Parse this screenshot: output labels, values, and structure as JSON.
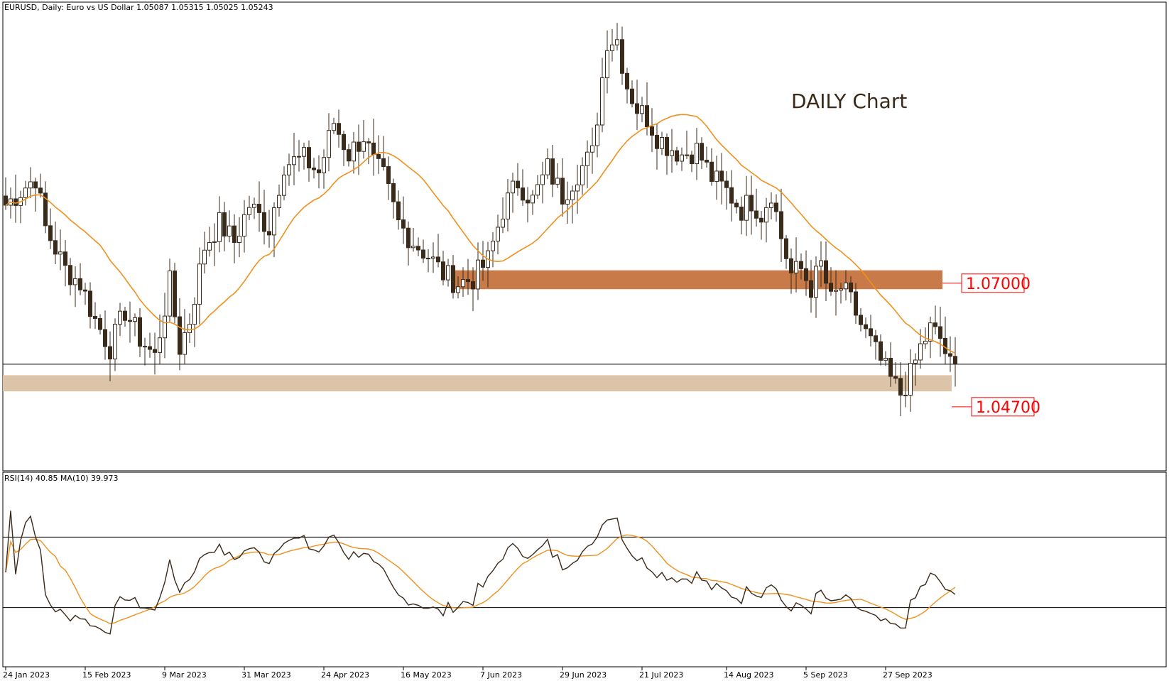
{
  "header": {
    "symbol_line": "EURUSD, Daily:  Euro vs US Dollar  1.05087 1.05315 1.05025 1.05243"
  },
  "annotation": {
    "text": "DAILY Chart",
    "color": "#3a2a1a"
  },
  "levels": [
    {
      "label": "1.07000",
      "value": 1.07,
      "zone": [
        1.0687,
        1.0728
      ],
      "color": "#c87a48"
    },
    {
      "label": "1.04700",
      "value": 1.047,
      "zone": [
        1.0465,
        1.05
      ],
      "color": "#dcc4a8"
    }
  ],
  "current_price_line": 1.0524,
  "x_axis": {
    "ticks": [
      {
        "label": "24 Jan 2023",
        "index": 0
      },
      {
        "label": "15 Feb 2023",
        "index": 16
      },
      {
        "label": "9 Mar 2023",
        "index": 32
      },
      {
        "label": "31 Mar 2023",
        "index": 48
      },
      {
        "label": "24 Apr 2023",
        "index": 64
      },
      {
        "label": "16 May 2023",
        "index": 80
      },
      {
        "label": "7 Jun 2023",
        "index": 96
      },
      {
        "label": "29 Jun 2023",
        "index": 112
      },
      {
        "label": "21 Jul 2023",
        "index": 128
      },
      {
        "label": "14 Aug 2023",
        "index": 145
      },
      {
        "label": "5 Sep 2023",
        "index": 161
      },
      {
        "label": "27 Sep 2023",
        "index": 177
      }
    ]
  },
  "chart_data": {
    "type": "candlestick",
    "ylim": [
      1.03,
      1.13
    ],
    "ma_color": "#f0901e",
    "bull_color": "#ffffff",
    "bear_color": "#3a2a1a",
    "keypoints": [
      [
        0,
        1.087
      ],
      [
        6,
        1.093
      ],
      [
        8,
        1.082
      ],
      [
        12,
        1.073
      ],
      [
        15,
        1.07
      ],
      [
        18,
        1.062
      ],
      [
        21,
        1.056
      ],
      [
        24,
        1.064
      ],
      [
        27,
        1.058
      ],
      [
        30,
        1.054
      ],
      [
        33,
        1.07
      ],
      [
        35,
        1.056
      ],
      [
        37,
        1.062
      ],
      [
        40,
        1.078
      ],
      [
        43,
        1.083
      ],
      [
        46,
        1.079
      ],
      [
        49,
        1.087
      ],
      [
        53,
        1.082
      ],
      [
        56,
        1.096
      ],
      [
        60,
        1.097
      ],
      [
        63,
        1.094
      ],
      [
        66,
        1.105
      ],
      [
        69,
        1.098
      ],
      [
        72,
        1.102
      ],
      [
        74,
        1.096
      ],
      [
        76,
        1.093
      ],
      [
        79,
        1.083
      ],
      [
        82,
        1.079
      ],
      [
        85,
        1.076
      ],
      [
        88,
        1.072
      ],
      [
        91,
        1.07
      ],
      [
        94,
        1.071
      ],
      [
        97,
        1.075
      ],
      [
        100,
        1.086
      ],
      [
        103,
        1.092
      ],
      [
        106,
        1.088
      ],
      [
        109,
        1.095
      ],
      [
        112,
        1.089
      ],
      [
        115,
        1.094
      ],
      [
        118,
        1.098
      ],
      [
        121,
        1.123
      ],
      [
        123,
        1.123
      ],
      [
        125,
        1.113
      ],
      [
        127,
        1.108
      ],
      [
        129,
        1.106
      ],
      [
        131,
        1.102
      ],
      [
        133,
        1.1
      ],
      [
        136,
        1.098
      ],
      [
        139,
        1.099
      ],
      [
        142,
        1.093
      ],
      [
        145,
        1.09
      ],
      [
        148,
        1.086
      ],
      [
        150,
        1.088
      ],
      [
        152,
        1.085
      ],
      [
        154,
        1.09
      ],
      [
        156,
        1.08
      ],
      [
        158,
        1.072
      ],
      [
        160,
        1.073
      ],
      [
        162,
        1.069
      ],
      [
        164,
        1.074
      ],
      [
        166,
        1.066
      ],
      [
        168,
        1.069
      ],
      [
        170,
        1.066
      ],
      [
        172,
        1.061
      ],
      [
        174,
        1.057
      ],
      [
        176,
        1.053
      ],
      [
        178,
        1.049
      ],
      [
        180,
        1.046
      ],
      [
        182,
        1.05
      ],
      [
        184,
        1.056
      ],
      [
        186,
        1.06
      ],
      [
        188,
        1.058
      ],
      [
        190,
        1.052
      ],
      [
        191,
        1.0524
      ]
    ]
  },
  "rsi": {
    "label": "RSI(14) 40.85 MA(10) 39.973",
    "ylim": [
      0,
      100
    ],
    "levels": [
      70,
      30
    ],
    "rsi_color": "#3a2a1a",
    "ma_color": "#f0901e"
  }
}
